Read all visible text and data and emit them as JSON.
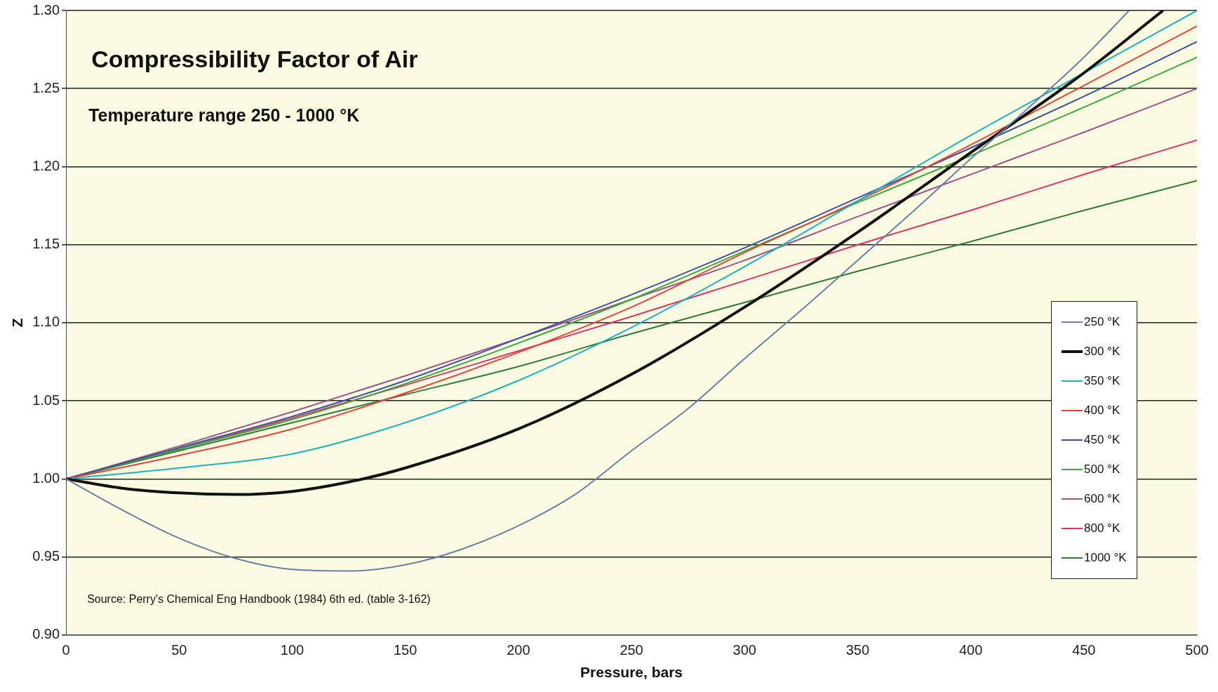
{
  "chart_data": {
    "type": "line",
    "title": "Compressibility Factor of Air",
    "subtitle": "Temperature range 250 - 1000 °K",
    "xlabel": "Pressure, bars",
    "ylabel": "Z",
    "annotations": [
      "Source: Perry's Chemical Eng Handbook (1984) 6th ed.  (table 3-162)"
    ],
    "x": [
      0,
      50,
      100,
      150,
      200,
      250,
      300,
      350,
      400,
      450,
      500
    ],
    "series": [
      {
        "name": "250 °K",
        "color": "#6a7fa8",
        "x": [
          0,
          25,
          50,
          75,
          100,
          125,
          150,
          175,
          200,
          225,
          250,
          275,
          300,
          325,
          350,
          375,
          400,
          425,
          450,
          470
        ],
        "values": [
          1.0,
          0.98,
          0.962,
          0.949,
          0.942,
          0.941,
          0.945,
          0.955,
          0.97,
          0.99,
          1.018,
          1.045,
          1.077,
          1.108,
          1.14,
          1.172,
          1.205,
          1.237,
          1.27,
          1.3
        ]
      },
      {
        "name": "300 °K",
        "color": "#111111",
        "x": [
          0,
          25,
          50,
          75,
          100,
          125,
          150,
          200,
          250,
          300,
          350,
          400,
          450,
          485
        ],
        "values": [
          1.0,
          0.994,
          0.991,
          0.99,
          0.992,
          0.998,
          1.007,
          1.032,
          1.067,
          1.11,
          1.158,
          1.209,
          1.26,
          1.3
        ]
      },
      {
        "name": "350 °K",
        "color": "#1fb0c0",
        "values": [
          1.0,
          1.007,
          1.016,
          1.036,
          1.063,
          1.097,
          1.136,
          1.178,
          1.22,
          1.26,
          1.3
        ]
      },
      {
        "name": "400 °K",
        "color": "#e8423a",
        "values": [
          1.0,
          1.015,
          1.032,
          1.055,
          1.081,
          1.11,
          1.145,
          1.178,
          1.214,
          1.252,
          1.29
        ]
      },
      {
        "name": "450 °K",
        "color": "#3a4fa0",
        "values": [
          1.0,
          1.02,
          1.04,
          1.063,
          1.09,
          1.118,
          1.148,
          1.18,
          1.212,
          1.245,
          1.28
        ]
      },
      {
        "name": "500 °K",
        "color": "#3aa83a",
        "values": [
          1.0,
          1.019,
          1.038,
          1.061,
          1.087,
          1.115,
          1.146,
          1.177,
          1.207,
          1.238,
          1.27
        ]
      },
      {
        "name": "600 °K",
        "color": "#a0508a",
        "values": [
          1.0,
          1.021,
          1.043,
          1.066,
          1.09,
          1.115,
          1.14,
          1.168,
          1.195,
          1.222,
          1.25
        ]
      },
      {
        "name": "800 °K",
        "color": "#e0306a",
        "values": [
          1.0,
          1.019,
          1.039,
          1.06,
          1.082,
          1.104,
          1.127,
          1.15,
          1.172,
          1.195,
          1.217
        ]
      },
      {
        "name": "1000 °K",
        "color": "#2e7a3a",
        "values": [
          1.0,
          1.018,
          1.036,
          1.054,
          1.072,
          1.093,
          1.113,
          1.133,
          1.152,
          1.172,
          1.191
        ]
      }
    ],
    "xlim": [
      0,
      500
    ],
    "xticks": [
      0,
      50,
      100,
      150,
      200,
      250,
      300,
      350,
      400,
      450,
      500
    ],
    "ylim": [
      0.9,
      1.3
    ],
    "yticks": [
      {
        "value": 0.9,
        "label": "0.90"
      },
      {
        "value": 0.95,
        "label": "0.95"
      },
      {
        "value": 1.0,
        "label": "1.00"
      },
      {
        "value": 1.05,
        "label": "1.05"
      },
      {
        "value": 1.1,
        "label": "1.10"
      },
      {
        "value": 1.15,
        "label": "1.15"
      },
      {
        "value": 1.2,
        "label": "1.20"
      },
      {
        "value": 1.25,
        "label": "1.25"
      },
      {
        "value": 1.3,
        "label": "1.30"
      }
    ],
    "grid": "y",
    "legend": "right",
    "marker": "none",
    "line_style": "solid"
  }
}
